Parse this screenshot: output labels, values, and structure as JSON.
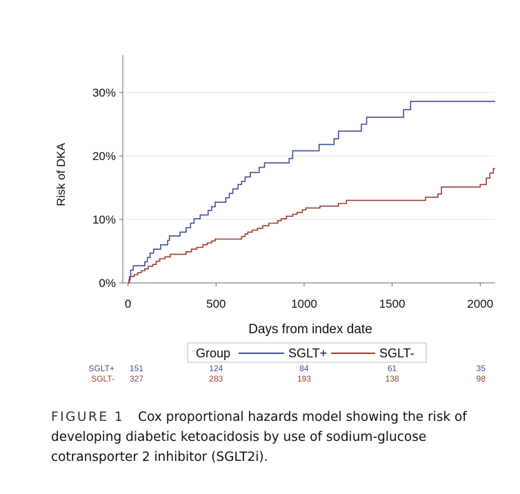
{
  "chart_data": {
    "type": "line",
    "title": "",
    "xlabel": "Days from index date",
    "ylabel": "Risk of DKA",
    "xlim": [
      -30,
      2085
    ],
    "ylim": [
      0,
      0.35
    ],
    "x_ticks": [
      0,
      500,
      1000,
      1500,
      2000
    ],
    "x_tick_labels": [
      "0",
      "500",
      "1000",
      "1500",
      "2000"
    ],
    "y_ticks": [
      0,
      0.1,
      0.2,
      0.3
    ],
    "y_tick_labels": [
      "0%",
      "10%",
      "20%",
      "30%"
    ],
    "legend": {
      "title": "Group",
      "placement": "bottom",
      "entries": [
        "SGLT+",
        "SGLT-"
      ]
    },
    "series": [
      {
        "name": "SGLT+",
        "color": "#3f4f96",
        "step_points": [
          [
            0,
            0.0
          ],
          [
            8,
            0.01
          ],
          [
            15,
            0.02
          ],
          [
            30,
            0.027
          ],
          [
            95,
            0.033
          ],
          [
            110,
            0.04
          ],
          [
            125,
            0.047
          ],
          [
            145,
            0.053
          ],
          [
            185,
            0.06
          ],
          [
            225,
            0.067
          ],
          [
            235,
            0.074
          ],
          [
            295,
            0.08
          ],
          [
            330,
            0.087
          ],
          [
            355,
            0.094
          ],
          [
            375,
            0.101
          ],
          [
            410,
            0.107
          ],
          [
            455,
            0.114
          ],
          [
            475,
            0.12
          ],
          [
            495,
            0.127
          ],
          [
            555,
            0.134
          ],
          [
            575,
            0.141
          ],
          [
            595,
            0.148
          ],
          [
            625,
            0.155
          ],
          [
            645,
            0.16
          ],
          [
            665,
            0.167
          ],
          [
            695,
            0.174
          ],
          [
            745,
            0.182
          ],
          [
            775,
            0.189
          ],
          [
            915,
            0.196
          ],
          [
            935,
            0.208
          ],
          [
            1085,
            0.218
          ],
          [
            1170,
            0.227
          ],
          [
            1195,
            0.239
          ],
          [
            1325,
            0.25
          ],
          [
            1355,
            0.261
          ],
          [
            1565,
            0.273
          ],
          [
            1605,
            0.286
          ],
          [
            2085,
            0.286
          ]
        ]
      },
      {
        "name": "SGLT-",
        "color": "#9c3d33",
        "step_points": [
          [
            0,
            0.0
          ],
          [
            5,
            0.005
          ],
          [
            12,
            0.01
          ],
          [
            35,
            0.013
          ],
          [
            55,
            0.016
          ],
          [
            75,
            0.019
          ],
          [
            95,
            0.022
          ],
          [
            115,
            0.026
          ],
          [
            140,
            0.029
          ],
          [
            160,
            0.034
          ],
          [
            180,
            0.038
          ],
          [
            210,
            0.041
          ],
          [
            240,
            0.045
          ],
          [
            330,
            0.049
          ],
          [
            360,
            0.053
          ],
          [
            390,
            0.056
          ],
          [
            425,
            0.06
          ],
          [
            450,
            0.063
          ],
          [
            475,
            0.066
          ],
          [
            495,
            0.069
          ],
          [
            645,
            0.073
          ],
          [
            665,
            0.077
          ],
          [
            680,
            0.08
          ],
          [
            705,
            0.083
          ],
          [
            735,
            0.086
          ],
          [
            765,
            0.09
          ],
          [
            800,
            0.094
          ],
          [
            850,
            0.098
          ],
          [
            870,
            0.101
          ],
          [
            900,
            0.105
          ],
          [
            935,
            0.108
          ],
          [
            960,
            0.111
          ],
          [
            990,
            0.115
          ],
          [
            1010,
            0.118
          ],
          [
            1090,
            0.121
          ],
          [
            1195,
            0.125
          ],
          [
            1240,
            0.13
          ],
          [
            1690,
            0.135
          ],
          [
            1760,
            0.14
          ],
          [
            1780,
            0.151
          ],
          [
            2000,
            0.155
          ],
          [
            2035,
            0.165
          ],
          [
            2055,
            0.173
          ],
          [
            2075,
            0.18
          ],
          [
            2085,
            0.18
          ]
        ]
      }
    ],
    "risk_table": {
      "times": [
        0,
        500,
        1000,
        1500,
        2000
      ],
      "rows": [
        {
          "name": "SGLT+",
          "counts": [
            "151",
            "124",
            "84",
            "61",
            "35"
          ],
          "color": "#3f4f96"
        },
        {
          "name": "SGLT-",
          "counts": [
            "327",
            "283",
            "193",
            "138",
            "98"
          ],
          "color": "#9c3d33"
        }
      ]
    }
  },
  "caption": {
    "label": "FIGURE 1",
    "text": "Cox proportional hazards model showing the risk of developing diabetic ketoacidosis by use of sodium-glucose cotransporter 2 inhibitor (SGLT2i)."
  }
}
